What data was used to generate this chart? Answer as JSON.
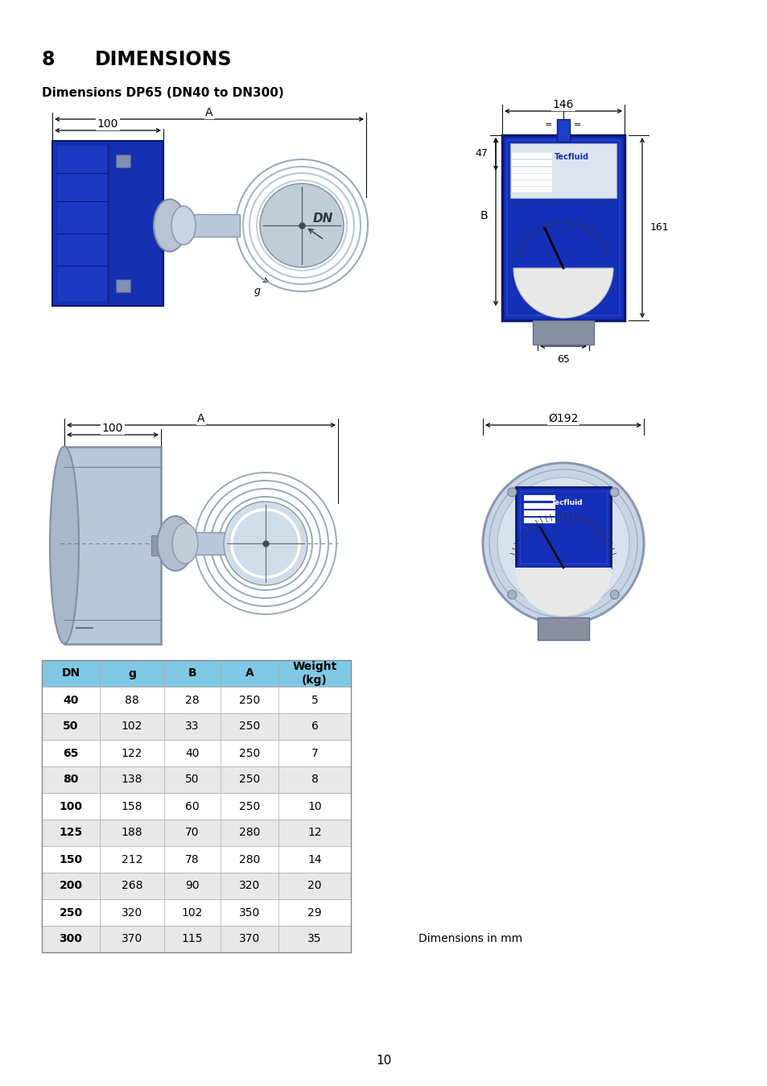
{
  "title_number": "8",
  "title_text": "DIMENSIONS",
  "subtitle": "Dimensions DP65 (DN40 to DN300)",
  "table_headers": [
    "DN",
    "g",
    "B",
    "A",
    "Weight\n(kg)"
  ],
  "table_data": [
    [
      "40",
      "88",
      "28",
      "250",
      "5"
    ],
    [
      "50",
      "102",
      "33",
      "250",
      "6"
    ],
    [
      "65",
      "122",
      "40",
      "250",
      "7"
    ],
    [
      "80",
      "138",
      "50",
      "250",
      "8"
    ],
    [
      "100",
      "158",
      "60",
      "250",
      "10"
    ],
    [
      "125",
      "188",
      "70",
      "280",
      "12"
    ],
    [
      "150",
      "212",
      "78",
      "280",
      "14"
    ],
    [
      "200",
      "268",
      "90",
      "320",
      "20"
    ],
    [
      "250",
      "320",
      "102",
      "350",
      "29"
    ],
    [
      "300",
      "370",
      "115",
      "370",
      "35"
    ]
  ],
  "dimensions_note": "Dimensions in mm",
  "page_number": "10",
  "header_bg": "#7ec8e3",
  "row_alt_bg": "#e8e8e8",
  "row_bg": "#ffffff",
  "border_color": "#aaaaaa",
  "blue_device": "#1a3fc4",
  "blue_device_dark": "#0a2080",
  "gray_light": "#c8d4e0",
  "gray_mid": "#9aa8bc",
  "gray_dark": "#6a7888"
}
